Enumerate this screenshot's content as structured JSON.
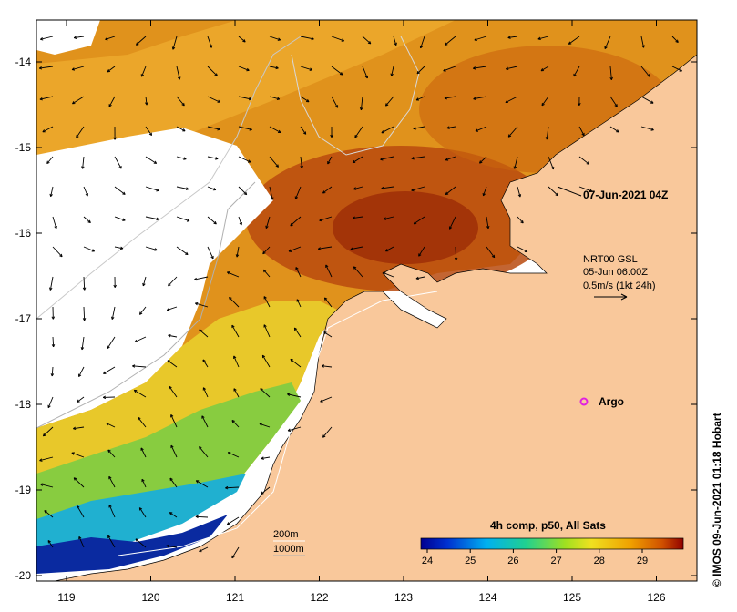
{
  "map": {
    "timestamp_label": "07-Jun-2021 04Z",
    "current_info": {
      "line1": "NRT00 GSL",
      "line2": "05-Jun 06:00Z",
      "line3": "0.5m/s (1kt 24h)"
    },
    "argo_label": "Argo",
    "isobath_labels": [
      "200m",
      "1000m"
    ],
    "colorbar": {
      "title": "4h comp, p50, All Sats",
      "ticks": [
        "24",
        "25",
        "26",
        "27",
        "28",
        "29"
      ]
    },
    "credit": "© IMOS 09-Jun-2021 01:18 Hobart",
    "lon_ticks": [
      "119",
      "120",
      "121",
      "122",
      "123",
      "124",
      "125",
      "126"
    ],
    "lat_ticks": [
      "-14",
      "-15",
      "-16",
      "-17",
      "-18",
      "-19",
      "-20"
    ],
    "colors": {
      "land": "#f9c89b",
      "sst_hot": "#b03a0a",
      "sst_warm": "#d97a10",
      "sst_mid": "#f0b020",
      "sst_green": "#80c840",
      "sst_cool": "#1090e0",
      "sst_cold": "#000080",
      "argo": "#e020e0"
    }
  }
}
